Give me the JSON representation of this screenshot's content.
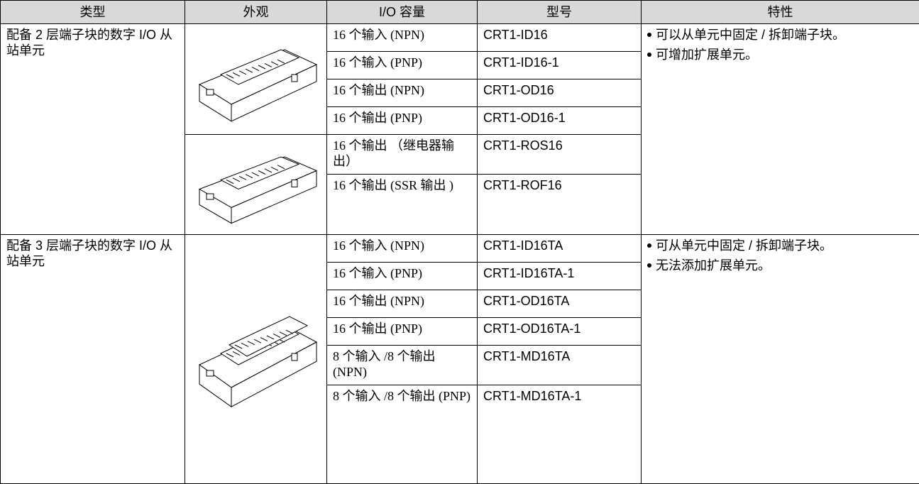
{
  "table": {
    "header": [
      "类型",
      "外观",
      "I/O 容量",
      "型号",
      "特性"
    ],
    "groups": [
      {
        "type": "配备 2 层端子块的数字 I/O 从站单元",
        "features": [
          "可以从单元中固定 / 拆卸端子块。",
          "可增加扩展单元。"
        ],
        "rows": [
          {
            "io": "16 个输入 (NPN)",
            "model": "CRT1-ID16"
          },
          {
            "io": "16 个输入 (PNP)",
            "model": "CRT1-ID16-1"
          },
          {
            "io": "16 个输出 (NPN)",
            "model": "CRT1-OD16"
          },
          {
            "io": "16 个输出 (PNP)",
            "model": "CRT1-OD16-1"
          },
          {
            "io": "16 个输出 （继电器输出）",
            "model": "CRT1-ROS16"
          },
          {
            "io": "16 个输出 (SSR 输出 )",
            "model": "CRT1-ROF16"
          }
        ]
      },
      {
        "type": "配备 3 层端子块的数字 I/O 从站单元",
        "features": [
          "可从单元中固定 / 拆卸端子块。",
          "无法添加扩展单元。"
        ],
        "rows": [
          {
            "io": "16 个输入 (NPN)",
            "model": "CRT1-ID16TA"
          },
          {
            "io": "16 个输入 (PNP)",
            "model": "CRT1-ID16TA-1"
          },
          {
            "io": "16 个输出 (NPN)",
            "model": "CRT1-OD16TA"
          },
          {
            "io": "16 个输出 (PNP)",
            "model": "CRT1-OD16TA-1"
          },
          {
            "io": "8 个输入 /8 个输出 (NPN)",
            "model": "CRT1-MD16TA"
          },
          {
            "io": "8 个输入 /8 个输出 (PNP)",
            "model": "CRT1-MD16TA-1"
          }
        ]
      }
    ]
  }
}
